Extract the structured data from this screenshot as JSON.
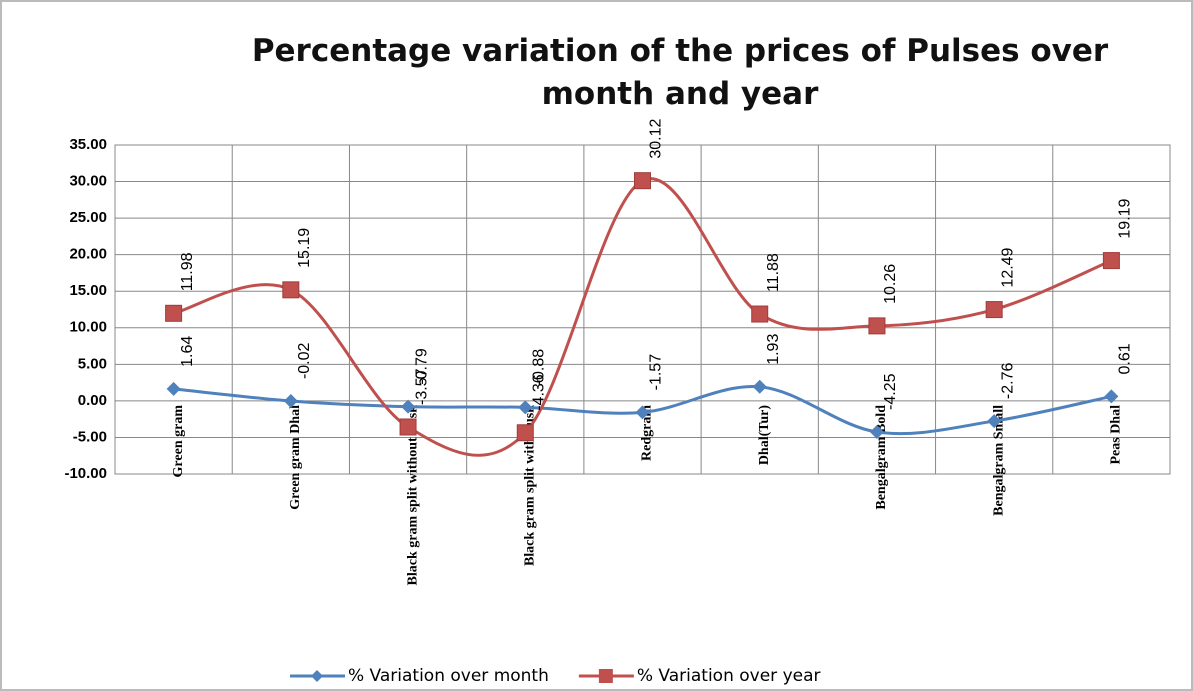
{
  "chart_data": {
    "type": "line",
    "title": "Percentage variation of the prices of Pulses over month and year",
    "categories": [
      "Green gram",
      "Green gram Dhal",
      "Black gram  split without husk",
      "Black gram split with husk",
      "Redgram",
      "Dhal(Tur)",
      "Bengalgram Bold",
      "Bengalgram Small",
      "Peas Dhal"
    ],
    "series": [
      {
        "name": "% Variation over month",
        "color": "#4f81bd",
        "marker": "diamond",
        "values": [
          1.64,
          -0.02,
          -0.79,
          -0.88,
          -1.57,
          1.93,
          -4.25,
          -2.76,
          0.61
        ]
      },
      {
        "name": "% Variation over year",
        "color": "#c0504d",
        "marker": "square",
        "values": [
          11.98,
          15.19,
          -3.57,
          -4.36,
          30.12,
          11.88,
          10.26,
          12.49,
          19.19
        ]
      }
    ],
    "ylim": [
      -10,
      35
    ],
    "yticks": [
      {
        "value": -10,
        "label": "-10.00"
      },
      {
        "value": -5,
        "label": "-5.00"
      },
      {
        "value": 0,
        "label": "0.00"
      },
      {
        "value": 5,
        "label": "5.00"
      },
      {
        "value": 10,
        "label": "10.00"
      },
      {
        "value": 15,
        "label": "15.00"
      },
      {
        "value": 20,
        "label": "20.00"
      },
      {
        "value": 25,
        "label": "25.00"
      },
      {
        "value": 30,
        "label": "30.00"
      },
      {
        "value": 35,
        "label": "35.00"
      }
    ],
    "grid": true,
    "legend": "bottom"
  }
}
